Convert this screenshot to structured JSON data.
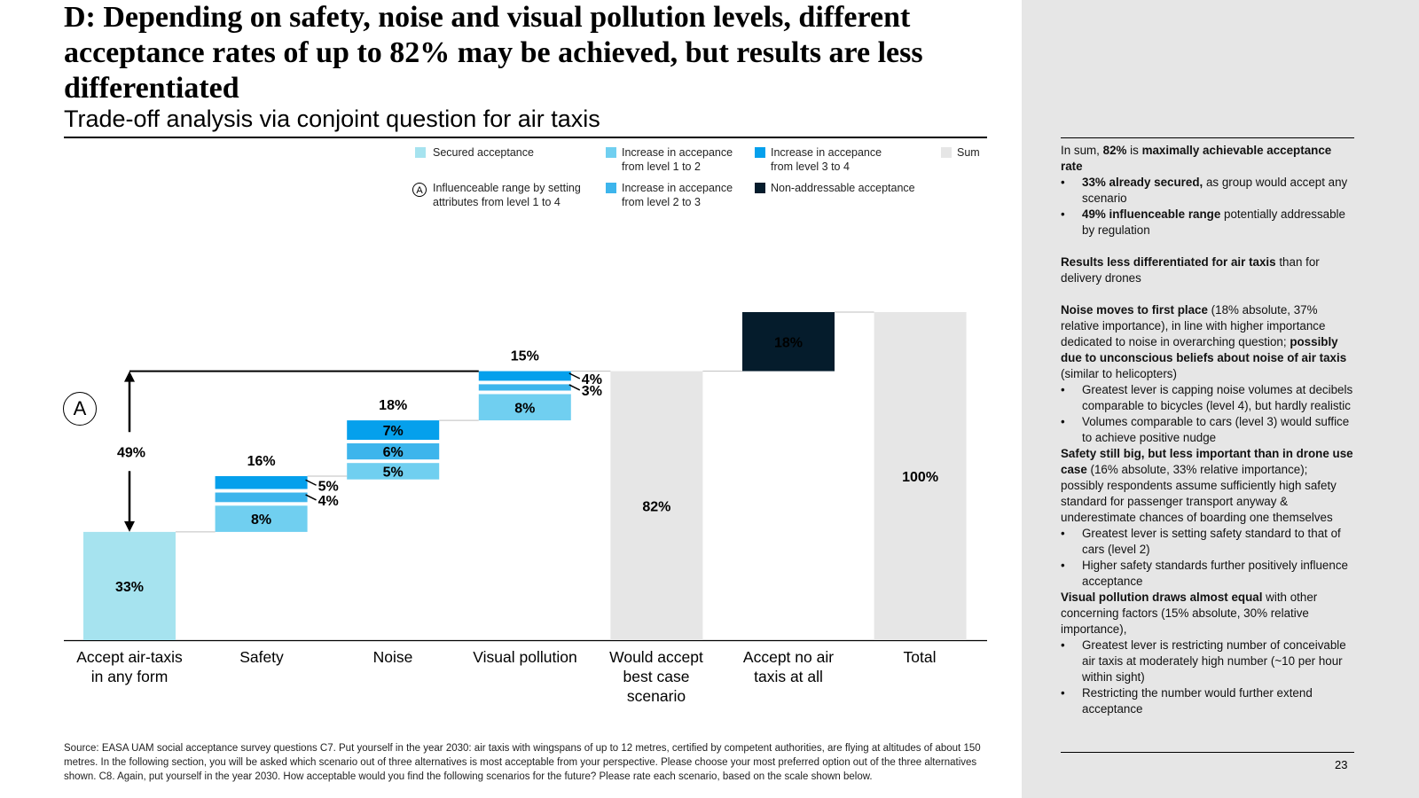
{
  "slide": {
    "title": "D: Depending on safety, noise and visual pollution levels, different acceptance rates of up to 82% may be achieved, but results are less differentiated",
    "subtitle": "Trade-off analysis via conjoint question for air taxis",
    "page_number": "23",
    "influenceable_marker": "A",
    "source": "Source: EASA UAM social acceptance survey questions C7. Put yourself in the year 2030: air taxis with wingspans of up to 12 metres, certified by competent authorities, are flying at altitudes of about 150 metres. In the following section, you will be asked which scenario out of three alternatives is most acceptable from your perspective. Please choose your most preferred option out of the three alternatives shown. C8. Again, put yourself in the year 2030. How acceptable would you find the following scenarios for the future? Please rate each scenario, based on the scale shown below."
  },
  "legend": {
    "secured": "Secured acceptance",
    "influenceable": "Influenceable range by setting attributes from level 1 to 4",
    "inc12": "Increase in accepance from level 1 to 2",
    "inc23": "Increase in accepance from level 2 to 3",
    "inc34": "Increase in accepance from level 3 to 4",
    "nonaddr": "Non-addressable acceptance",
    "sum": "Sum"
  },
  "colors": {
    "secured": "#a6e3ef",
    "inc12": "#70cff0",
    "inc23": "#3db5ec",
    "inc34": "#05a0ec",
    "nonaddr": "#051c2c",
    "sum": "#e6e6e6",
    "panel": "#e6e6e6"
  },
  "chart_data": {
    "type": "bar",
    "subtype": "waterfall",
    "unit": "%",
    "ylim": [
      0,
      100
    ],
    "categories": [
      "Accept air-taxis\nin any form",
      "Safety",
      "Noise",
      "Visual pollution",
      "Would accept\nbest case\nscenario",
      "Accept no air\ntaxis at all",
      "Total"
    ],
    "bars": [
      {
        "category": "Accept air-taxis in any form",
        "kind": "secured",
        "base": 0,
        "segments": [
          {
            "level": "secured",
            "value": 33,
            "label": "33%"
          }
        ]
      },
      {
        "category": "Safety",
        "kind": "increase",
        "base": 33,
        "total_label": "16%",
        "segments": [
          {
            "level": "inc12",
            "value": 8,
            "label": "8%"
          },
          {
            "level": "inc23",
            "value": 4,
            "label": "4%"
          },
          {
            "level": "inc34",
            "value": 5,
            "label": "5%"
          }
        ]
      },
      {
        "category": "Noise",
        "kind": "increase",
        "base": 49,
        "total_label": "18%",
        "segments": [
          {
            "level": "inc12",
            "value": 5,
            "label": "5%"
          },
          {
            "level": "inc23",
            "value": 6,
            "label": "6%"
          },
          {
            "level": "inc34",
            "value": 7,
            "label": "7%"
          }
        ]
      },
      {
        "category": "Visual pollution",
        "kind": "increase",
        "base": 67,
        "total_label": "15%",
        "segments": [
          {
            "level": "inc12",
            "value": 8,
            "label": "8%"
          },
          {
            "level": "inc23",
            "value": 3,
            "label": "3%"
          },
          {
            "level": "inc34",
            "value": 4,
            "label": "4%"
          }
        ]
      },
      {
        "category": "Would accept best case scenario",
        "kind": "sum",
        "base": 0,
        "segments": [
          {
            "level": "sum",
            "value": 82,
            "label": "82%"
          }
        ]
      },
      {
        "category": "Accept no air taxis at all",
        "kind": "nonaddr",
        "base": 82,
        "segments": [
          {
            "level": "nonaddr",
            "value": 18,
            "label": "18%"
          }
        ]
      },
      {
        "category": "Total",
        "kind": "sum",
        "base": 0,
        "segments": [
          {
            "level": "sum",
            "value": 100,
            "label": "100%"
          }
        ]
      }
    ],
    "influenceable_range": {
      "from": 33,
      "to": 82,
      "label": "49%"
    }
  },
  "sidebar": {
    "p1_a": "In sum, ",
    "p1_b": "82%",
    "p1_c": " is ",
    "p1_d": "maximally achievable acceptance rate",
    "b1_a": "33% already secured,",
    "b1_b": " as group would accept any scenario",
    "b2_a": "49% influenceable range",
    "b2_b": " potentially addressable by regulation",
    "p2_a": "Results less differentiated for air taxis",
    "p2_b": " than for delivery drones",
    "p3_a": "Noise moves to first place",
    "p3_b": " (18% absolute, 37% relative importance), in line with higher importance dedicated to noise in overarching question; ",
    "p3_c": "possibly due to unconscious beliefs about noise of air taxis",
    "p3_d": " (similar to helicopters)",
    "b3": "Greatest lever is capping noise volumes at decibels comparable to bicycles (level 4), but hardly realistic",
    "b4": "Volumes comparable to cars (level 3) would suffice to achieve positive nudge",
    "p4_a": "Safety still big, but less important than in drone use case",
    "p4_b": " (16% absolute, 33% relative importance); possibly respondents assume sufficiently high safety standard for passenger transport anyway & underestimate chances of boarding one themselves",
    "b5": "Greatest lever is setting safety standard to that of cars (level 2)",
    "b6": "Higher safety standards further positively influence acceptance",
    "p5_a": "Visual pollution draws almost equal",
    "p5_b": " with other concerning factors (15% absolute, 30% relative importance),",
    "b7": "Greatest lever is restricting number of conceivable air taxis at moderately high number (~10 per hour within sight)",
    "b8": "Restricting the number would further extend acceptance"
  }
}
